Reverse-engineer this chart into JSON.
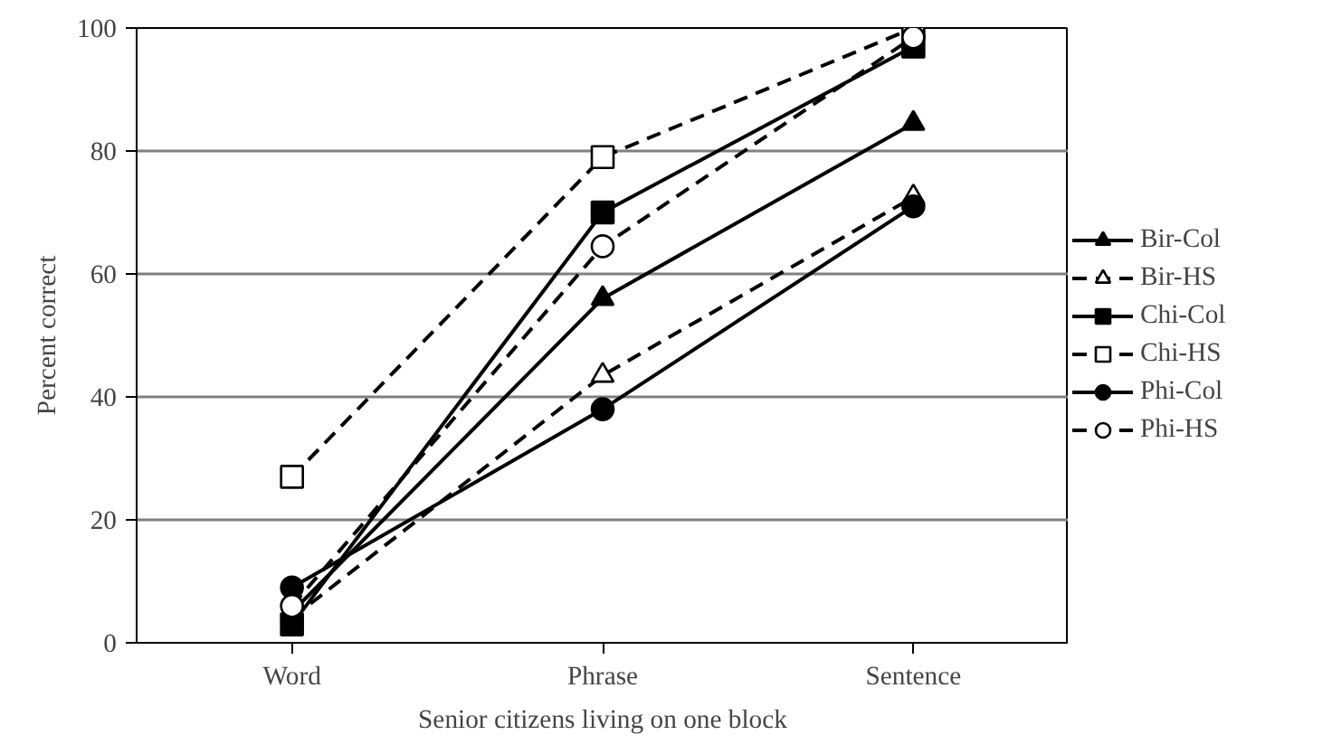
{
  "chart_data": {
    "type": "line",
    "xlabel": "Senior citizens living on one block",
    "ylabel": "Percent correct",
    "categories": [
      "Word",
      "Phrase",
      "Sentence"
    ],
    "ylim": [
      0,
      100
    ],
    "yticks": [
      0,
      20,
      40,
      60,
      80,
      100
    ],
    "grid": "y",
    "legend": "right",
    "series": [
      {
        "name": "Bir-Col",
        "color": "#000000",
        "marker": "triangle",
        "line_style": "solid",
        "values": [
          5,
          56,
          84.5
        ]
      },
      {
        "name": "Bir-HS",
        "color": "#000000",
        "marker": "triangle",
        "line_style": "dashed",
        "values": [
          4,
          43.5,
          72.5
        ]
      },
      {
        "name": "Chi-Col",
        "color": "#000000",
        "marker": "square",
        "line_style": "solid",
        "values": [
          3,
          70,
          97
        ]
      },
      {
        "name": "Chi-HS",
        "color": "#000000",
        "marker": "square",
        "line_style": "dashed",
        "values": [
          27,
          79,
          100
        ]
      },
      {
        "name": "Phi-Col",
        "color": "#000000",
        "marker": "circle",
        "line_style": "solid",
        "values": [
          9,
          38,
          71
        ]
      },
      {
        "name": "Phi-HS",
        "color": "#000000",
        "marker": "circle",
        "line_style": "dashed",
        "values": [
          6,
          64.5,
          98.5
        ]
      }
    ]
  }
}
